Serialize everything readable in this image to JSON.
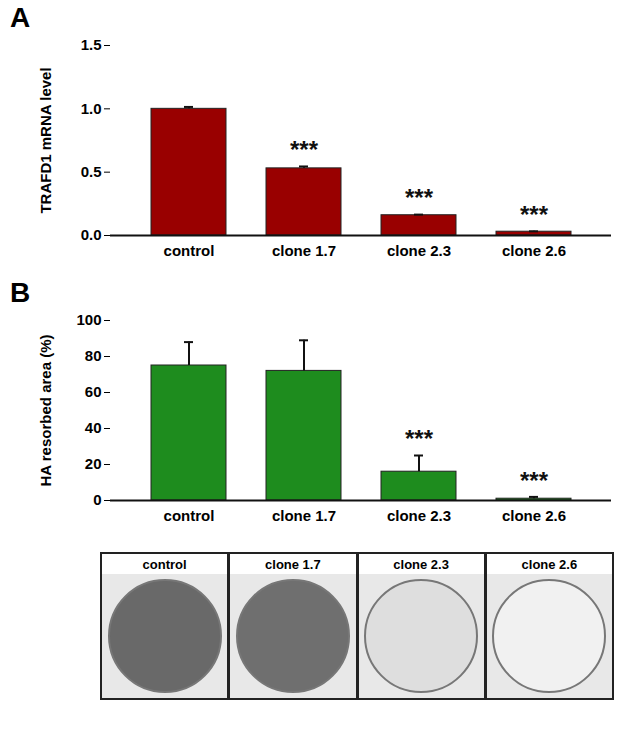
{
  "chart_data": [
    {
      "type": "bar",
      "title": "A",
      "ylabel": "TRAFD1 mRNA level",
      "categories": [
        "control",
        "clone 1.7",
        "clone 2.3",
        "clone 2.6"
      ],
      "values": [
        1.0,
        0.53,
        0.16,
        0.03
      ],
      "errors": [
        0.015,
        0.015,
        0.005,
        0.003
      ],
      "color": "#990000",
      "ylim": [
        0,
        1.5
      ],
      "yticks": [
        {
          "value": 0,
          "label": "0.0"
        },
        {
          "value": 0.5,
          "label": "0.5"
        },
        {
          "value": 1,
          "label": "1.0"
        },
        {
          "value": 1.5,
          "label": "1.5"
        }
      ],
      "annotations": [
        {
          "category": "clone 1.7",
          "text": "***"
        },
        {
          "category": "clone 2.3",
          "text": "***"
        },
        {
          "category": "clone 2.6",
          "text": "***"
        }
      ]
    },
    {
      "type": "bar",
      "title": "B",
      "ylabel": "HA resorbed area (%)",
      "categories": [
        "control",
        "clone 1.7",
        "clone 2.3",
        "clone 2.6"
      ],
      "values": [
        75,
        72,
        16,
        1
      ],
      "errors": [
        13,
        17,
        9,
        1
      ],
      "color": "#1e8c1e",
      "ylim": [
        0,
        100
      ],
      "yticks": [
        0,
        20,
        40,
        60,
        80,
        100
      ],
      "annotations": [
        {
          "category": "clone 2.3",
          "text": "***"
        },
        {
          "category": "clone 2.6",
          "text": "***"
        }
      ]
    }
  ],
  "images": {
    "labels": [
      "control",
      "clone 1.7",
      "clone 2.3",
      "clone 2.6"
    ]
  }
}
